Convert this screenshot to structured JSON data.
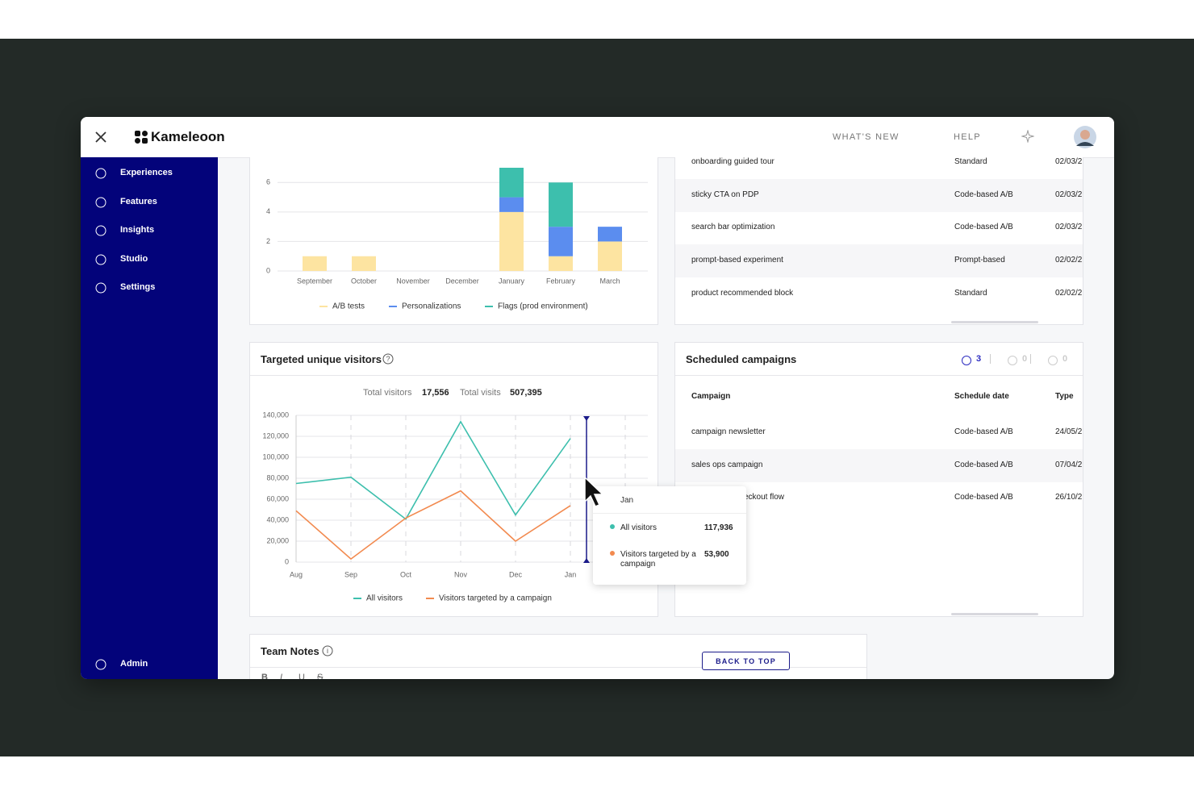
{
  "header": {
    "logo": "Kameleoon",
    "nav": [
      "WHAT'S NEW",
      "HELP"
    ]
  },
  "sidebar": {
    "items": [
      "Experiences",
      "Features",
      "Insights",
      "Studio",
      "Settings"
    ],
    "admin": "Admin"
  },
  "chart_data": [
    {
      "type": "bar",
      "stacked": true,
      "categories": [
        "September",
        "October",
        "November",
        "December",
        "January",
        "February",
        "March"
      ],
      "series": [
        {
          "name": "A/B tests",
          "color": "#fde4a1",
          "values": [
            1,
            1,
            0,
            0,
            4,
            1,
            2
          ]
        },
        {
          "name": "Personalizations",
          "color": "#5b8def",
          "values": [
            0,
            0,
            0,
            0,
            1,
            2,
            1
          ]
        },
        {
          "name": "Flags (prod environment)",
          "color": "#3dbfad",
          "values": [
            0,
            0,
            0,
            0,
            2,
            3,
            0
          ]
        }
      ],
      "ylim": [
        0,
        7
      ],
      "yticks": [
        0,
        2,
        4,
        6
      ],
      "grid": true
    },
    {
      "type": "line",
      "title": "Targeted unique visitors",
      "summary": [
        {
          "label": "Total visitors",
          "text": "17,556"
        },
        {
          "label": "Total visits",
          "text": "507,395"
        }
      ],
      "categories": [
        "Aug",
        "Sep",
        "Oct",
        "Nov",
        "Dec",
        "Jan",
        null
      ],
      "series": [
        {
          "name": "All visitors",
          "color": "#3dbfad",
          "values": [
            75000,
            81000,
            41000,
            134000,
            45000,
            117936,
            null
          ]
        },
        {
          "name": "Visitors targeted by a campaign",
          "color": "#f28a4f",
          "values": [
            49000,
            3000,
            42000,
            68000,
            20000,
            53900,
            null
          ]
        }
      ],
      "ylim": [
        0,
        140000
      ],
      "yticks": [
        0,
        {
          "value": 20000,
          "label": "20,000"
        },
        {
          "value": 40000,
          "label": "40,000"
        },
        {
          "value": 60000,
          "label": "60,000"
        },
        {
          "value": 80000,
          "label": "80,000"
        },
        {
          "value": 100000,
          "label": "100,000"
        },
        {
          "value": 120000,
          "label": "120,000"
        },
        {
          "value": 140000,
          "label": "140,000"
        }
      ],
      "grid": true,
      "tooltip": {
        "title": "Jan",
        "rows": [
          {
            "name": "All visitors",
            "text": "117,936"
          },
          {
            "name": "Visitors targeted by a campaign",
            "text": "53,900"
          }
        ]
      }
    }
  ],
  "recent": {
    "rows": [
      [
        "onboarding guided tour",
        "Standard",
        "02/03/2"
      ],
      [
        "sticky CTA on PDP",
        "Code-based A/B",
        "02/03/2"
      ],
      [
        "search bar optimization",
        "Code-based A/B",
        "02/03/2"
      ],
      [
        "prompt-based experiment",
        "Prompt-based",
        "02/02/2"
      ],
      [
        "product recommended block",
        "Standard",
        "02/02/2"
      ]
    ]
  },
  "scheduled": {
    "title": "Scheduled campaigns",
    "counts": [
      "3",
      "0",
      "0"
    ],
    "columns": [
      "Campaign",
      "Schedule date",
      "Type"
    ],
    "rows": [
      [
        "campaign newsletter",
        "Code-based A/B",
        "24/05/2"
      ],
      [
        "sales ops campaign",
        "Code-based A/B",
        "07/04/2"
      ],
      [
        "eckout flow",
        "Code-based A/B",
        "26/10/2"
      ]
    ]
  },
  "notes": {
    "title": "Team Notes",
    "toolbar": [
      "B",
      "I",
      "U",
      "S"
    ]
  },
  "back_to_top": "BACK TO TOP"
}
